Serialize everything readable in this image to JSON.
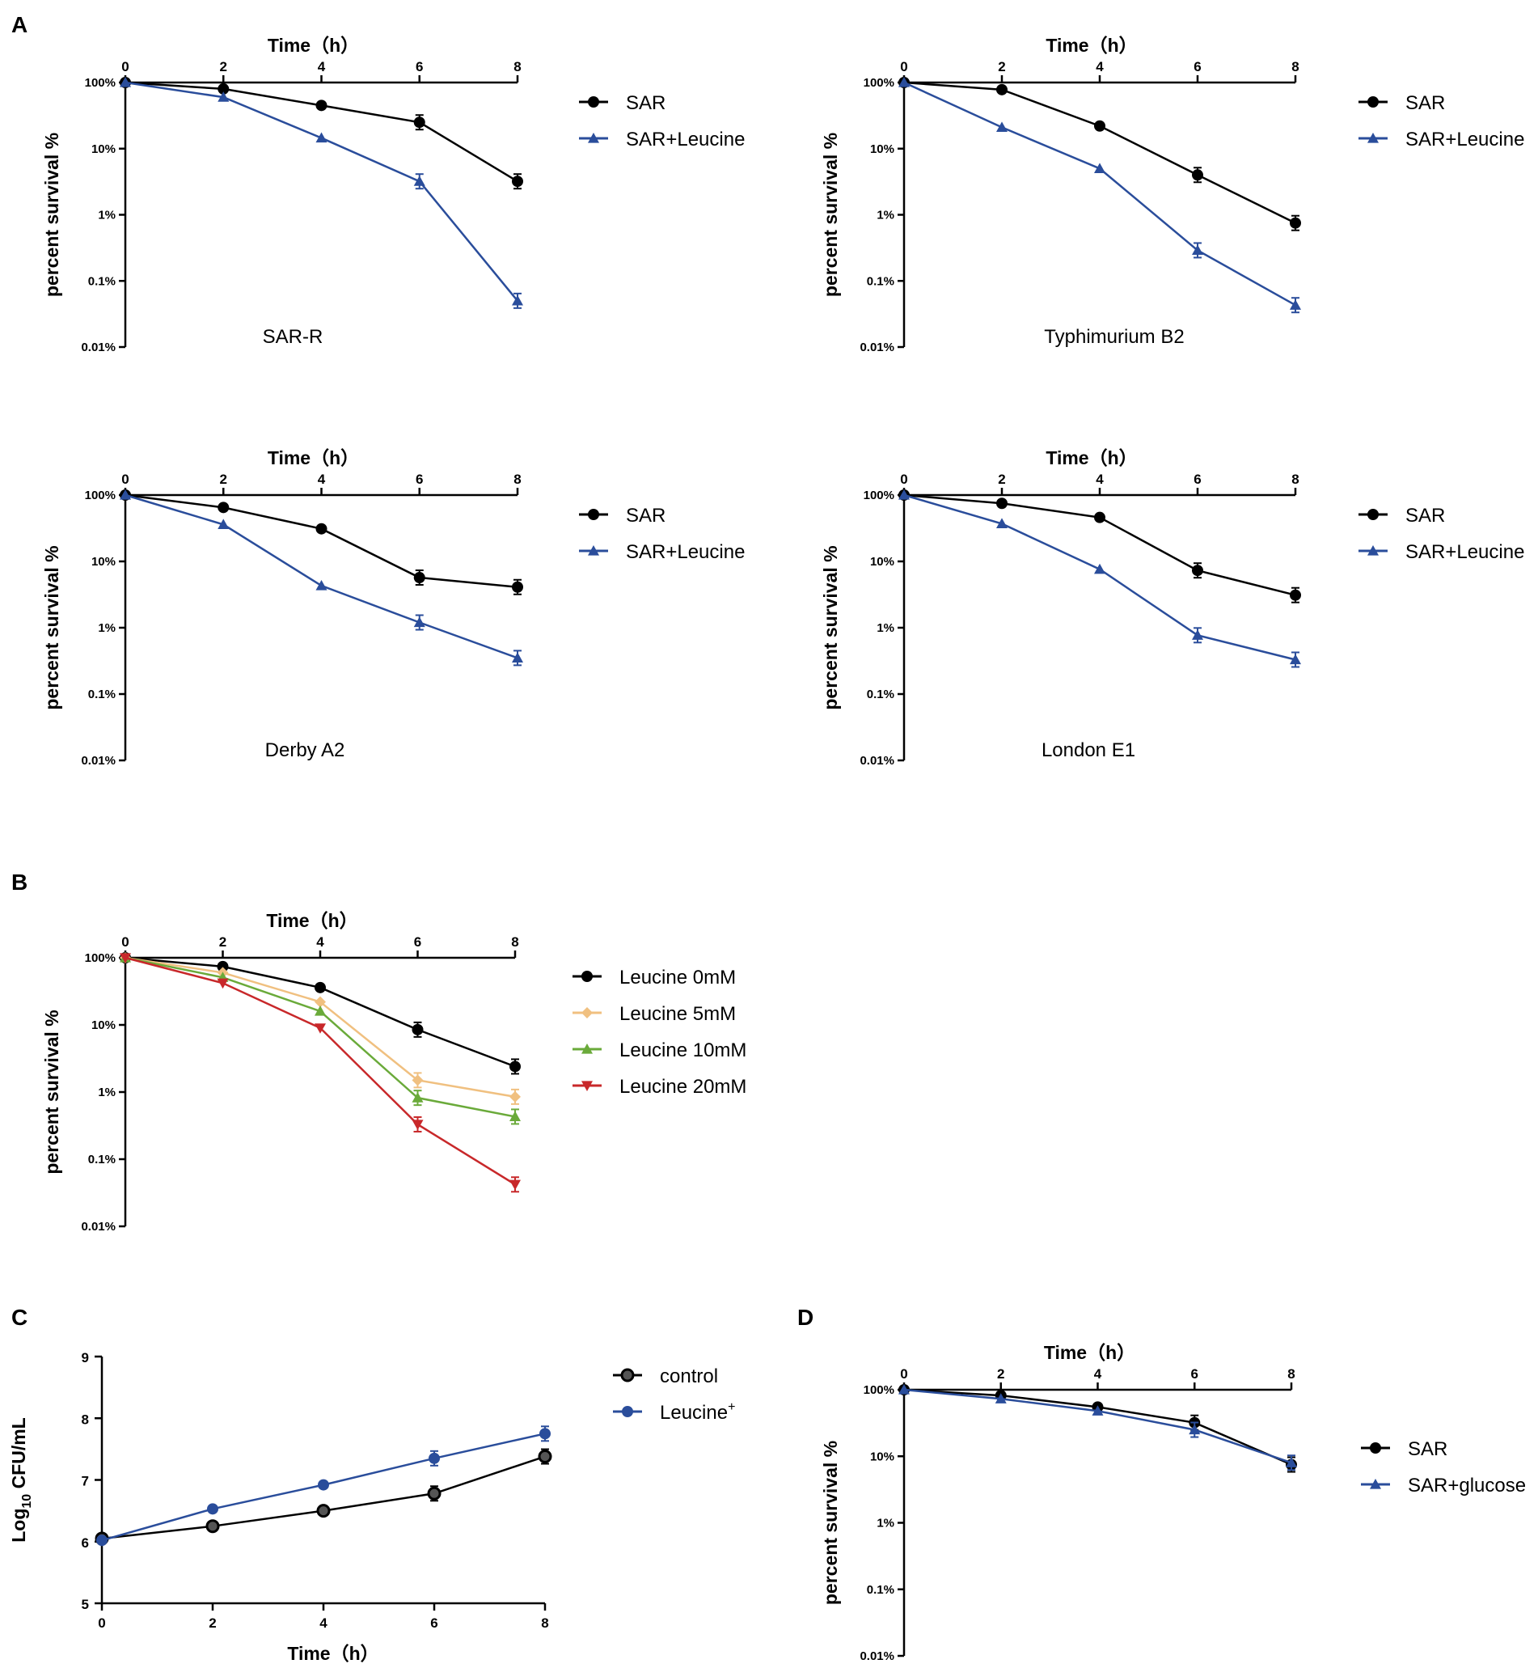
{
  "chart_data": [
    {
      "id": "A1",
      "panel_label": "A",
      "type": "line",
      "y_scale": "log",
      "title": "SAR-R",
      "xlabel": "Time（h）",
      "ylabel": "percent survival %",
      "x": [
        0,
        2,
        4,
        6,
        8
      ],
      "x_ticks": [
        "0",
        "2",
        "4",
        "6",
        "8"
      ],
      "y_ticks": [
        "100%",
        "10%",
        "1%",
        "0.1%",
        "0.01%"
      ],
      "ylim": [
        0.01,
        100
      ],
      "series": [
        {
          "name": "SAR",
          "color": "#000000",
          "marker": "circle",
          "values": [
            100,
            80,
            45,
            25,
            3.2
          ]
        },
        {
          "name": "SAR+Leucine",
          "color": "#2a4d9b",
          "marker": "triangle",
          "values": [
            100,
            60,
            14.5,
            3.2,
            0.05
          ]
        }
      ]
    },
    {
      "id": "A2",
      "type": "line",
      "y_scale": "log",
      "title": "Typhimurium B2",
      "xlabel": "Time（h）",
      "ylabel": "percent survival %",
      "x": [
        0,
        2,
        4,
        6,
        8
      ],
      "x_ticks": [
        "0",
        "2",
        "4",
        "6",
        "8"
      ],
      "y_ticks": [
        "100%",
        "10%",
        "1%",
        "0.1%",
        "0.01%"
      ],
      "ylim": [
        0.01,
        100
      ],
      "series": [
        {
          "name": "SAR",
          "color": "#000000",
          "marker": "circle",
          "values": [
            100,
            78,
            22,
            4,
            0.75
          ]
        },
        {
          "name": "SAR+Leucine",
          "color": "#2a4d9b",
          "marker": "triangle",
          "values": [
            100,
            21,
            5,
            0.29,
            0.043
          ]
        }
      ]
    },
    {
      "id": "A3",
      "type": "line",
      "y_scale": "log",
      "title": "Derby A2",
      "xlabel": "Time（h）",
      "ylabel": "percent survival %",
      "x": [
        0,
        2,
        4,
        6,
        8
      ],
      "x_ticks": [
        "0",
        "2",
        "4",
        "6",
        "8"
      ],
      "y_ticks": [
        "100%",
        "10%",
        "1%",
        "0.1%",
        "0.01%"
      ],
      "ylim": [
        0.01,
        100
      ],
      "series": [
        {
          "name": "SAR",
          "color": "#000000",
          "marker": "circle",
          "values": [
            100,
            65,
            31,
            5.7,
            4.1
          ]
        },
        {
          "name": "SAR+Leucine",
          "color": "#2a4d9b",
          "marker": "triangle",
          "values": [
            100,
            36,
            4.3,
            1.2,
            0.35
          ]
        }
      ]
    },
    {
      "id": "A4",
      "type": "line",
      "y_scale": "log",
      "title": "London E1",
      "xlabel": "Time（h）",
      "ylabel": "percent survival %",
      "x": [
        0,
        2,
        4,
        6,
        8
      ],
      "x_ticks": [
        "0",
        "2",
        "4",
        "6",
        "8"
      ],
      "y_ticks": [
        "100%",
        "10%",
        "1%",
        "0.1%",
        "0.01%"
      ],
      "ylim": [
        0.01,
        100
      ],
      "series": [
        {
          "name": "SAR",
          "color": "#000000",
          "marker": "circle",
          "values": [
            100,
            75,
            46,
            7.3,
            3.1
          ]
        },
        {
          "name": "SAR+Leucine",
          "color": "#2a4d9b",
          "marker": "triangle",
          "values": [
            100,
            37,
            7.6,
            0.77,
            0.33
          ]
        }
      ]
    },
    {
      "id": "B",
      "panel_label": "B",
      "type": "line",
      "y_scale": "log",
      "title": "",
      "xlabel": "Time（h）",
      "ylabel": "percent survival %",
      "x": [
        0,
        2,
        4,
        6,
        8
      ],
      "x_ticks": [
        "0",
        "2",
        "4",
        "6",
        "8"
      ],
      "y_ticks": [
        "100%",
        "10%",
        "1%",
        "0.1%",
        "0.01%"
      ],
      "ylim": [
        0.01,
        100
      ],
      "series": [
        {
          "name": "Leucine 0mM",
          "color": "#000000",
          "marker": "circle",
          "values": [
            100,
            74,
            36,
            8.5,
            2.4
          ]
        },
        {
          "name": "Leucine 5mM",
          "color": "#f0c080",
          "marker": "diamond",
          "values": [
            100,
            60,
            22,
            1.5,
            0.85
          ]
        },
        {
          "name": "Leucine 10mM",
          "color": "#6aaa3a",
          "marker": "triangle",
          "values": [
            100,
            51,
            16,
            0.82,
            0.43
          ]
        },
        {
          "name": "Leucine 20mM",
          "color": "#c8282a",
          "marker": "triangle-down",
          "values": [
            100,
            42,
            9,
            0.33,
            0.042
          ]
        }
      ]
    },
    {
      "id": "C",
      "panel_label": "C",
      "type": "line",
      "y_scale": "linear",
      "title": "",
      "xlabel": "Time（h）",
      "ylabel": "Log10 CFU/mL",
      "ylabel_parts": {
        "base": "Log",
        "sub": "10",
        "rest": " CFU/mL"
      },
      "x": [
        0,
        2,
        4,
        6,
        8
      ],
      "x_ticks": [
        "0",
        "2",
        "4",
        "6",
        "8"
      ],
      "y_ticks": [
        "9",
        "8",
        "7",
        "6",
        "5"
      ],
      "ylim": [
        5,
        9
      ],
      "series": [
        {
          "name": "control",
          "color": "#000000",
          "marker": "ring",
          "values": [
            6.05,
            6.25,
            6.5,
            6.78,
            7.38
          ]
        },
        {
          "name": "Leucine+",
          "legend_parts": {
            "base": "Leucine",
            "sup": "+"
          },
          "color": "#2a4d9b",
          "marker": "circle",
          "values": [
            6.02,
            6.53,
            6.92,
            7.35,
            7.75
          ]
        }
      ]
    },
    {
      "id": "D",
      "panel_label": "D",
      "type": "line",
      "y_scale": "log",
      "title": "",
      "xlabel": "Time（h）",
      "ylabel": "percent survival %",
      "x": [
        0,
        2,
        4,
        6,
        8
      ],
      "x_ticks": [
        "0",
        "2",
        "4",
        "6",
        "8"
      ],
      "y_ticks": [
        "100%",
        "10%",
        "1%",
        "0.1%",
        "0.01%"
      ],
      "ylim": [
        0.01,
        100
      ],
      "series": [
        {
          "name": "SAR",
          "color": "#000000",
          "marker": "circle",
          "values": [
            100,
            82,
            55,
            32,
            7.5
          ]
        },
        {
          "name": "SAR+glucose",
          "color": "#2a4d9b",
          "marker": "triangle",
          "values": [
            100,
            73,
            48,
            25,
            8
          ]
        }
      ]
    }
  ]
}
